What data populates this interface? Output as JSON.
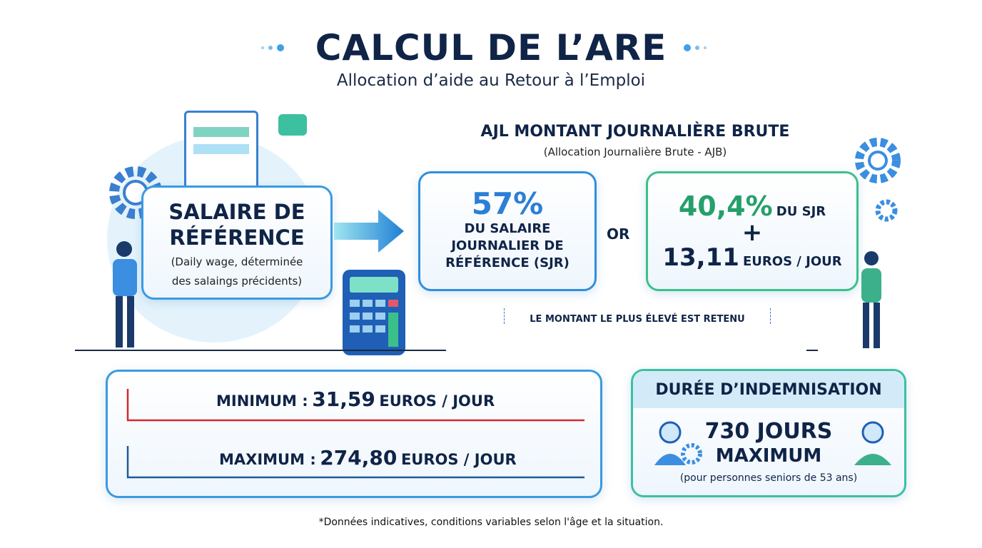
{
  "header": {
    "title": "CALCUL DE L’ARE",
    "subtitle": "Allocation d’aide au Retour à l’Emploi"
  },
  "salaire": {
    "title_line1": "SALAIRE DE",
    "title_line2": "RÉFÉRENCE",
    "desc_line1": "(Daily wage, déterminée",
    "desc_line2": "des salaings précidents)"
  },
  "ajl": {
    "title": "AJL MONTANT JOURNALIÈRE BRUTE",
    "subtitle": "(Allocation Journalière Brute - AJB)",
    "option1": {
      "percent": "57%",
      "line1": "DU SALAIRE",
      "line2": "JOURNALIER DE",
      "line3": "RÉFÉRENCE (SJR)"
    },
    "or": "OR",
    "option2": {
      "percent": "40,4%",
      "percent_suffix": "DU SJR",
      "plus": "+",
      "amount": "13,11",
      "unit": "EUROS / JOUR"
    },
    "note": "LE MONTANT LE PLUS ÉLEVÉ EST RETENU"
  },
  "limits": {
    "min_label": "MINIMUM :",
    "min_value": "31,59",
    "min_unit": "EUROS / JOUR",
    "max_label": "MAXIMUM :",
    "max_value": "274,80",
    "max_unit": "EUROS / JOUR"
  },
  "duree": {
    "title": "DURÉE D’INDEMNISATION",
    "line1": "730 JOURS",
    "line2": "MAXIMUM",
    "note": "(pour personnes seniors de 53 ans)"
  },
  "footnote": "*Données indicatives, conditions variables selon l'âge et la situation.",
  "colors": {
    "navy": "#0f2447",
    "blue": "#2c7fd6",
    "green": "#25a06a",
    "red": "#d8282c"
  }
}
